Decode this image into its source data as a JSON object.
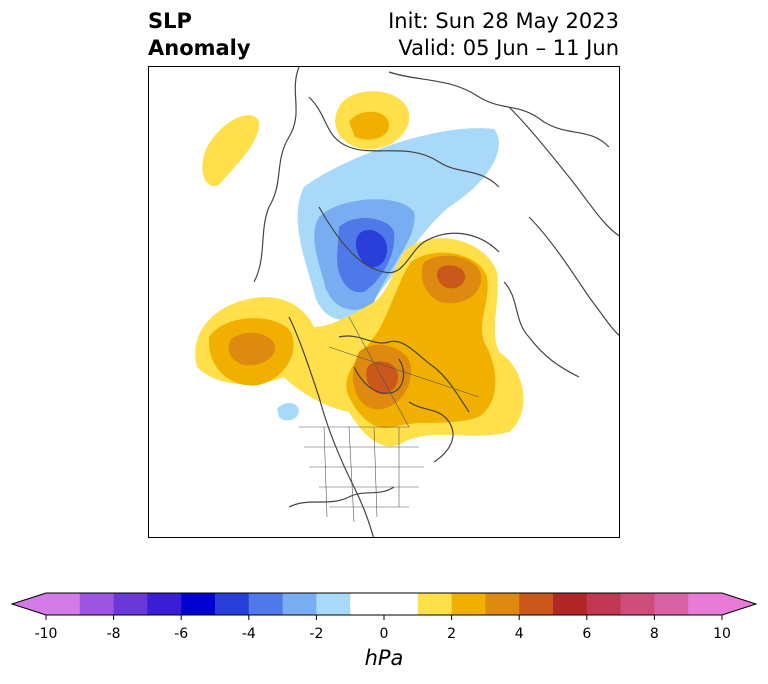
{
  "title": {
    "left_line1": "SLP",
    "left_line2": "Anomaly",
    "right_line1": "Init: Sun 28 May 2023",
    "right_line2": "Valid: 05 Jun – 11 Jun"
  },
  "colorbar": {
    "units": "hPa",
    "min": -10,
    "max": 10,
    "step": 1,
    "colors": [
      "#d17ae8",
      "#9c55e0",
      "#6a38d9",
      "#3a1ed6",
      "#0000d0",
      "#2a3fd9",
      "#4f78e8",
      "#78aef1",
      "#a9d9f8",
      "#ffffff",
      "#ffffff",
      "#ffe04a",
      "#f1b000",
      "#de8a10",
      "#c9581a",
      "#b12626",
      "#c13852",
      "#cf4d7a",
      "#d962a5",
      "#e87ad8"
    ],
    "extend_low_color": "#d17ae8",
    "extend_high_color": "#e87ad8",
    "tick_labels": [
      "-10",
      "-8",
      "-6",
      "-4",
      "-2",
      "0",
      "2",
      "4",
      "6",
      "8",
      "10"
    ]
  }
}
